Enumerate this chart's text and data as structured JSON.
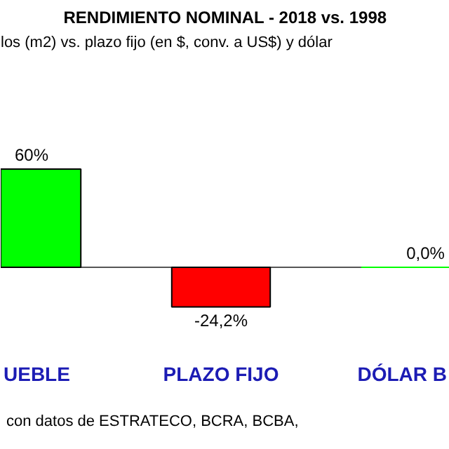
{
  "chart_data": {
    "type": "bar",
    "title": "RENDIMIENTO NOMINAL - 2018 vs. 1998",
    "subtitle": "los (m2) vs. plazo fijo (en $, conv. a US$) y dólar",
    "categories": [
      "UEBLE",
      "PLAZO FIJO",
      "DÓLAR B"
    ],
    "values": [
      60,
      -24.2,
      0
    ],
    "colors": [
      "#00ff00",
      "#ff0000",
      "#00ff00"
    ],
    "value_labels": [
      "60%",
      "-24,2%",
      "0,0%"
    ],
    "annotations": [
      "con datos de ESTRATECO, BCRA, BCBA,"
    ]
  }
}
